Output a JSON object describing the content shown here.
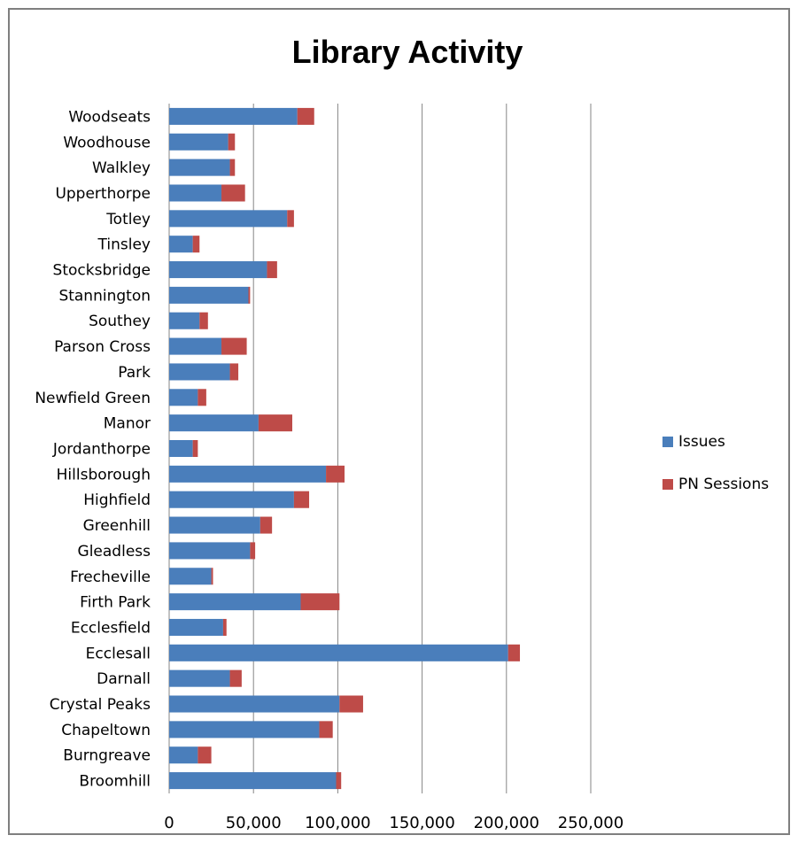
{
  "chart_data": {
    "type": "bar",
    "orientation": "horizontal",
    "stacked": true,
    "title": "Library Activity",
    "xlim": [
      0,
      250000
    ],
    "xticks": [
      "0",
      "50,000",
      "100,000",
      "150,000",
      "200,000",
      "250,000"
    ],
    "grid": true,
    "legend_position": "right",
    "categories": [
      "Woodseats",
      "Woodhouse",
      "Walkley",
      "Upperthorpe",
      "Totley",
      "Tinsley",
      "Stocksbridge",
      "Stannington",
      "Southey",
      "Parson Cross",
      "Park",
      "Newfield Green",
      "Manor",
      "Jordanthorpe",
      "Hillsborough",
      "Highfield",
      "Greenhill",
      "Gleadless",
      "Frecheville",
      "Firth Park",
      "Ecclesfield",
      "Ecclesall",
      "Darnall",
      "Crystal Peaks",
      "Chapeltown",
      "Burngreave",
      "Broomhill"
    ],
    "series": [
      {
        "name": "Issues",
        "color": "#4a7ebb",
        "values": [
          76000,
          35000,
          36000,
          31000,
          70000,
          14000,
          58000,
          47000,
          18000,
          31000,
          36000,
          17000,
          53000,
          14000,
          93000,
          74000,
          54000,
          48000,
          25000,
          78000,
          32000,
          201000,
          36000,
          101000,
          89000,
          17000,
          99000
        ]
      },
      {
        "name": "PN Sessions",
        "color": "#be4b48",
        "values": [
          10000,
          4000,
          3000,
          14000,
          4000,
          4000,
          6000,
          1000,
          5000,
          15000,
          5000,
          5000,
          20000,
          3000,
          11000,
          9000,
          7000,
          3000,
          1000,
          23000,
          2000,
          7000,
          7000,
          14000,
          8000,
          8000,
          3000
        ]
      }
    ]
  }
}
